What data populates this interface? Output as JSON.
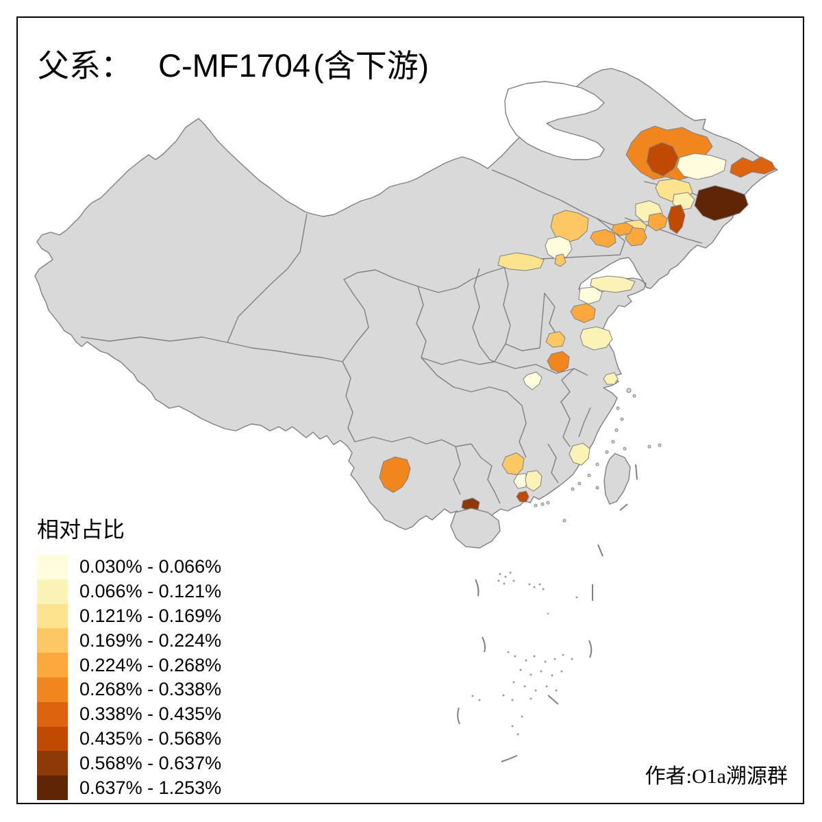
{
  "title": {
    "prefix": "父系：",
    "code": "C-MF1704",
    "suffix": "(含下游)"
  },
  "attribution": "作者:O1a溯源群",
  "legend": {
    "title": "相对占比",
    "classes": [
      {
        "label": "0.030% - 0.066%",
        "color": "#FFFDDE"
      },
      {
        "label": "0.066% - 0.121%",
        "color": "#FBF2B6"
      },
      {
        "label": "0.121% - 0.169%",
        "color": "#FDE38E"
      },
      {
        "label": "0.169% - 0.224%",
        "color": "#FDC763"
      },
      {
        "label": "0.224% - 0.268%",
        "color": "#FDA83D"
      },
      {
        "label": "0.268% - 0.338%",
        "color": "#F1861F"
      },
      {
        "label": "0.338% - 0.435%",
        "color": "#DC640E"
      },
      {
        "label": "0.435% - 0.568%",
        "color": "#C04A02"
      },
      {
        "label": "0.568% - 0.637%",
        "color": "#8E3A08"
      },
      {
        "label": "0.637% - 1.253%",
        "color": "#5E2605"
      }
    ]
  },
  "map": {
    "land_color": "#D9D9D9",
    "border_color": "#7F7F7F",
    "sea_color": "#FFFFFF",
    "regions": [
      {
        "id": "hulunbuir",
        "class": 6,
        "range": "0.268% - 0.338%"
      },
      {
        "id": "qiqihar",
        "class": 8,
        "range": "0.435% - 0.568%"
      },
      {
        "id": "suihua",
        "class": 1,
        "range": "0.030% - 0.066%"
      },
      {
        "id": "jixi",
        "class": 7,
        "range": "0.338% - 0.435%"
      },
      {
        "id": "mudanjiang",
        "class": 10,
        "range": "0.637% - 1.253%"
      },
      {
        "id": "songyuan",
        "class": 3,
        "range": "0.121% - 0.169%"
      },
      {
        "id": "changchun",
        "class": 2,
        "range": "0.066% - 0.121%"
      },
      {
        "id": "jilin-city",
        "class": 8,
        "range": "0.435% - 0.568%"
      },
      {
        "id": "siping",
        "class": 2,
        "range": "0.066% - 0.121%"
      },
      {
        "id": "tieling",
        "class": 5,
        "range": "0.224% - 0.268%"
      },
      {
        "id": "shenyang-north",
        "class": 3,
        "range": "0.121% - 0.169%"
      },
      {
        "id": "fushun",
        "class": 5,
        "range": "0.224% - 0.268%"
      },
      {
        "id": "chaoyang",
        "class": 5,
        "range": "0.224% - 0.268%"
      },
      {
        "id": "jinzhou",
        "class": 5,
        "range": "0.224% - 0.268%"
      },
      {
        "id": "chengde",
        "class": 4,
        "range": "0.169% - 0.224%"
      },
      {
        "id": "beijing",
        "class": 1,
        "range": "0.030% - 0.066%"
      },
      {
        "id": "zhangjiakou",
        "class": 3,
        "range": "0.121% - 0.169%"
      },
      {
        "id": "tianjin-small",
        "class": 4,
        "range": "0.169% - 0.224%"
      },
      {
        "id": "yantai",
        "class": 2,
        "range": "0.066% - 0.121%"
      },
      {
        "id": "qingdao-area",
        "class": 1,
        "range": "0.030% - 0.066%"
      },
      {
        "id": "linyi",
        "class": 5,
        "range": "0.224% - 0.268%"
      },
      {
        "id": "xuzhou",
        "class": 2,
        "range": "0.066% - 0.121%"
      },
      {
        "id": "xuchang",
        "class": 4,
        "range": "0.169% - 0.224%"
      },
      {
        "id": "zhumadian",
        "class": 6,
        "range": "0.268% - 0.338%"
      },
      {
        "id": "suizhou",
        "class": 1,
        "range": "0.030% - 0.066%"
      },
      {
        "id": "nantong",
        "class": 2,
        "range": "0.066% - 0.121%"
      },
      {
        "id": "yuxi",
        "class": 6,
        "range": "0.268% - 0.338%"
      },
      {
        "id": "qingyuan",
        "class": 4,
        "range": "0.169% - 0.224%"
      },
      {
        "id": "guangzhou-north",
        "class": 1,
        "range": "0.030% - 0.066%"
      },
      {
        "id": "heyuan",
        "class": 2,
        "range": "0.066% - 0.121%"
      },
      {
        "id": "zhongshan",
        "class": 8,
        "range": "0.435% - 0.568%"
      },
      {
        "id": "maoming",
        "class": 9,
        "range": "0.568% - 0.637%"
      },
      {
        "id": "quanzhou",
        "class": 2,
        "range": "0.066% - 0.121%"
      }
    ]
  }
}
